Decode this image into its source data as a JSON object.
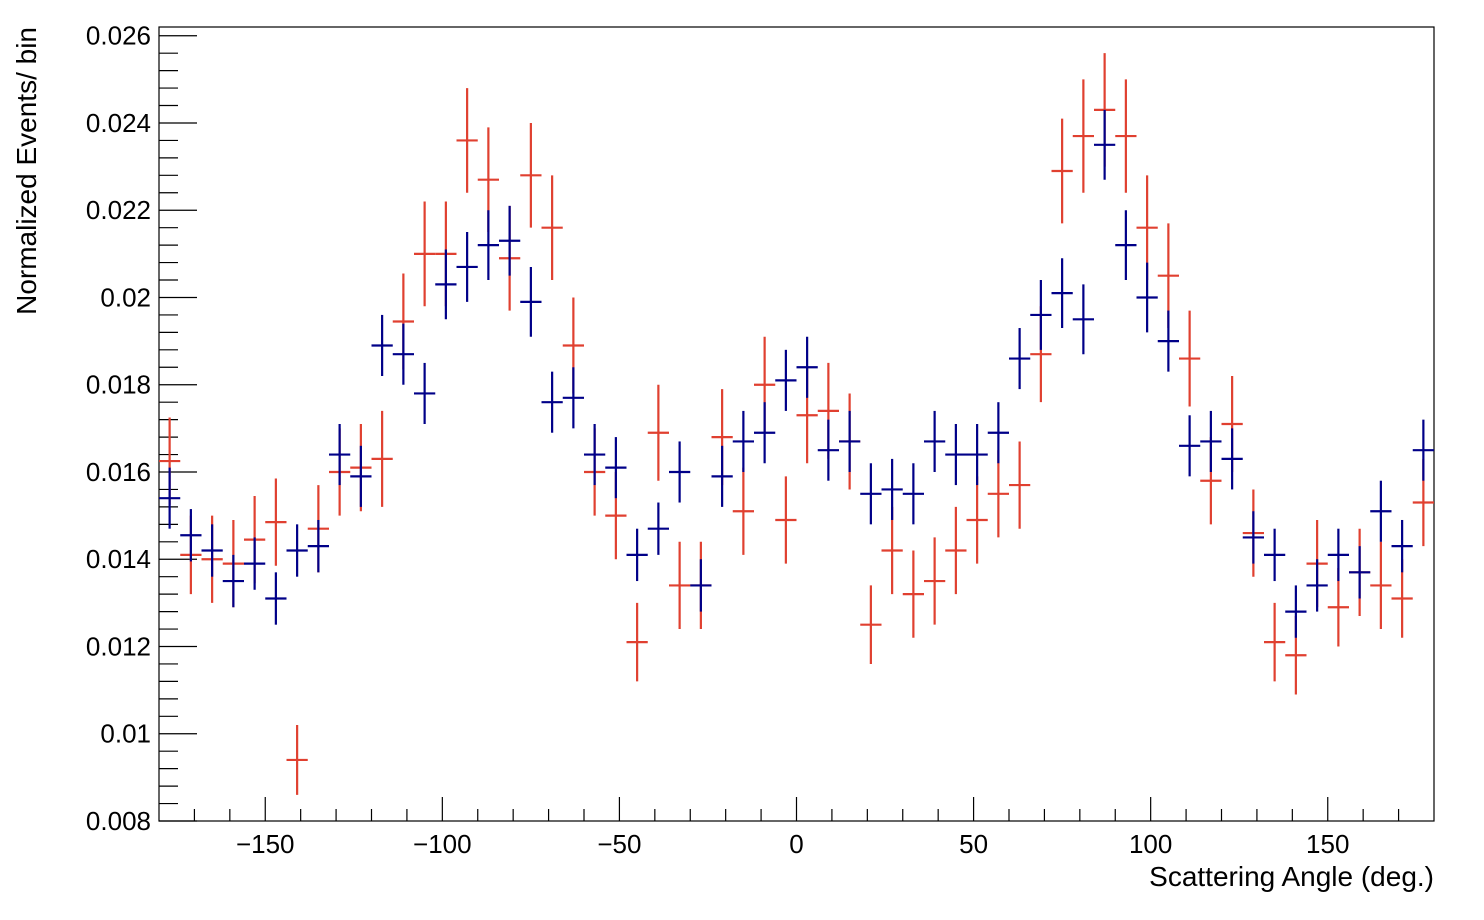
{
  "chart_data": {
    "type": "scatter",
    "title": "",
    "xlabel": "Scattering Angle (deg.)",
    "ylabel": "Normalized Events/ bin",
    "xlim": [
      -180,
      180
    ],
    "ylim": [
      0.008,
      0.0262
    ],
    "x_bin_width": 6,
    "x_ticks": [
      -150,
      -100,
      -50,
      0,
      50,
      100,
      150
    ],
    "x_tick_labels": [
      "−150",
      "−100",
      "−50",
      "0",
      "50",
      "100",
      "150"
    ],
    "y_ticks": [
      0.008,
      0.01,
      0.012,
      0.014,
      0.016,
      0.018,
      0.02,
      0.022,
      0.024,
      0.026
    ],
    "y_tick_labels": [
      "0.008",
      "0.01",
      "0.012",
      "0.014",
      "0.016",
      "0.018",
      "0.02",
      "0.022",
      "0.024",
      "0.026"
    ],
    "grid": false,
    "x": [
      -177,
      -171,
      -165,
      -159,
      -153,
      -147,
      -141,
      -135,
      -129,
      -123,
      -117,
      -111,
      -105,
      -99,
      -93,
      -87,
      -81,
      -75,
      -69,
      -63,
      -57,
      -51,
      -45,
      -39,
      -33,
      -27,
      -21,
      -15,
      -9,
      -3,
      3,
      9,
      15,
      21,
      27,
      33,
      39,
      45,
      51,
      57,
      63,
      69,
      75,
      81,
      87,
      93,
      99,
      105,
      111,
      117,
      123,
      129,
      135,
      141,
      147,
      153,
      159,
      165,
      171,
      177
    ],
    "series": [
      {
        "color": "#e04030",
        "values": [
          0.01625,
          0.0141,
          0.014,
          0.0139,
          0.01445,
          0.01485,
          0.0094,
          0.0147,
          0.016,
          0.0161,
          0.0163,
          0.01945,
          0.021,
          0.021,
          0.0236,
          0.0227,
          0.0209,
          0.0228,
          0.0216,
          0.0189,
          0.016,
          0.015,
          0.0121,
          0.0169,
          0.0134,
          0.0134,
          0.0168,
          0.0151,
          0.018,
          0.0149,
          0.0173,
          0.0174,
          0.0167,
          0.0125,
          0.0142,
          0.0132,
          0.0135,
          0.0142,
          0.0149,
          0.0155,
          0.0157,
          0.0187,
          0.0229,
          0.0237,
          0.0243,
          0.0237,
          0.0216,
          0.0205,
          0.0186,
          0.0158,
          0.0171,
          0.0146,
          0.0121,
          0.0118,
          0.0139,
          0.0129,
          0.0137,
          0.0134,
          0.0131,
          0.0153
        ],
        "errors": [
          0.001,
          0.0009,
          0.001,
          0.001,
          0.001,
          0.001,
          0.0008,
          0.001,
          0.001,
          0.001,
          0.0011,
          0.0011,
          0.0012,
          0.0012,
          0.0012,
          0.0012,
          0.0012,
          0.0012,
          0.0012,
          0.0011,
          0.001,
          0.001,
          0.0009,
          0.0011,
          0.001,
          0.001,
          0.0011,
          0.001,
          0.0011,
          0.001,
          0.0011,
          0.0011,
          0.0011,
          0.0009,
          0.001,
          0.001,
          0.001,
          0.001,
          0.001,
          0.001,
          0.001,
          0.0011,
          0.0012,
          0.0013,
          0.0013,
          0.0013,
          0.0012,
          0.0012,
          0.0011,
          0.001,
          0.0011,
          0.001,
          0.0009,
          0.0009,
          0.001,
          0.0009,
          0.001,
          0.001,
          0.0009,
          0.001
        ]
      },
      {
        "color": "#000088",
        "values": [
          0.0154,
          0.01455,
          0.0142,
          0.0135,
          0.0139,
          0.0131,
          0.0142,
          0.0143,
          0.0164,
          0.0159,
          0.0189,
          0.0187,
          0.0178,
          0.0203,
          0.0207,
          0.0212,
          0.0213,
          0.0199,
          0.0176,
          0.0177,
          0.0164,
          0.0161,
          0.0141,
          0.0147,
          0.016,
          0.0134,
          0.0159,
          0.0167,
          0.0169,
          0.0181,
          0.0184,
          0.0165,
          0.0167,
          0.0155,
          0.0156,
          0.0155,
          0.0167,
          0.0164,
          0.0164,
          0.0169,
          0.0186,
          0.0196,
          0.0201,
          0.0195,
          0.0235,
          0.0212,
          0.02,
          0.019,
          0.0166,
          0.0167,
          0.0163,
          0.0145,
          0.0141,
          0.0128,
          0.0134,
          0.0141,
          0.0137,
          0.0151,
          0.0143,
          0.0165
        ],
        "errors": [
          0.0007,
          0.0006,
          0.0006,
          0.0006,
          0.0006,
          0.0006,
          0.0006,
          0.0006,
          0.0007,
          0.0007,
          0.0007,
          0.0007,
          0.0007,
          0.0008,
          0.0008,
          0.0008,
          0.0008,
          0.0008,
          0.0007,
          0.0007,
          0.0007,
          0.0007,
          0.0006,
          0.0006,
          0.0007,
          0.0006,
          0.0007,
          0.0007,
          0.0007,
          0.0007,
          0.0007,
          0.0007,
          0.0007,
          0.0007,
          0.0007,
          0.0007,
          0.0007,
          0.0007,
          0.0007,
          0.0007,
          0.0007,
          0.0008,
          0.0008,
          0.0008,
          0.0008,
          0.0008,
          0.0008,
          0.0007,
          0.0007,
          0.0007,
          0.0007,
          0.0006,
          0.0006,
          0.0006,
          0.0006,
          0.0006,
          0.0006,
          0.0007,
          0.0006,
          0.0007
        ]
      }
    ]
  }
}
